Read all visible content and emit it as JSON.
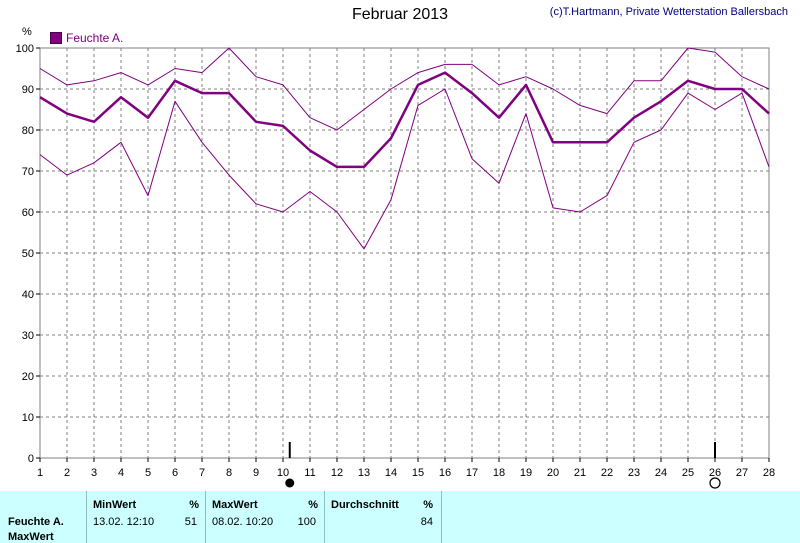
{
  "title": "Februar 2013",
  "credit": "(c)T.Hartmann, Private Wetterstation Ballersbach",
  "unit": "%",
  "legend": "Feuchte A.",
  "colors": {
    "series": "#800080",
    "grid": "#808080"
  },
  "chart_data": {
    "type": "line",
    "title": "Februar 2013",
    "ylabel": "%",
    "ylim": [
      0,
      100
    ],
    "xlim": [
      1,
      28
    ],
    "grid": true,
    "legend_position": "top-left",
    "x": [
      1,
      2,
      3,
      4,
      5,
      6,
      7,
      8,
      9,
      10,
      11,
      12,
      13,
      14,
      15,
      16,
      17,
      18,
      19,
      20,
      21,
      22,
      23,
      24,
      25,
      26,
      27,
      28
    ],
    "yticks": [
      0,
      10,
      20,
      30,
      40,
      50,
      60,
      70,
      80,
      90,
      100
    ],
    "series": [
      {
        "name": "Feuchte A.",
        "role": "avg",
        "values": [
          88,
          84,
          82,
          88,
          83,
          92,
          89,
          89,
          82,
          81,
          75,
          71,
          71,
          78,
          91,
          94,
          89,
          83,
          91,
          77,
          77,
          77,
          83,
          87,
          92,
          90,
          90,
          84
        ]
      },
      {
        "name": "",
        "role": "max",
        "values": [
          95,
          91,
          92,
          94,
          91,
          95,
          94,
          100,
          93,
          91,
          83,
          80,
          85,
          90,
          94,
          96,
          96,
          91,
          93,
          90,
          86,
          84,
          92,
          92,
          100,
          99,
          93,
          90
        ]
      },
      {
        "name": "",
        "role": "min",
        "values": [
          74,
          69,
          72,
          77,
          64,
          87,
          77,
          69,
          62,
          60,
          65,
          60,
          51,
          63,
          86,
          90,
          73,
          67,
          84,
          61,
          60,
          64,
          77,
          80,
          89,
          85,
          89,
          71
        ]
      }
    ],
    "markers": [
      {
        "x": 10.25,
        "type": "filled-circle"
      },
      {
        "x": 26,
        "type": "open-circle"
      }
    ]
  },
  "table": {
    "headers": {
      "min": "MinWert",
      "max": "MaxWert",
      "avg": "Durchschnitt",
      "unit": "%"
    },
    "rows": [
      {
        "label": "Feuchte A.",
        "min_time": "13.02.  12:10",
        "min_value": "51",
        "max_time": "08.02.  10:20",
        "max_value": "100",
        "avg_value": "84"
      }
    ],
    "next_label": "MaxWert"
  }
}
